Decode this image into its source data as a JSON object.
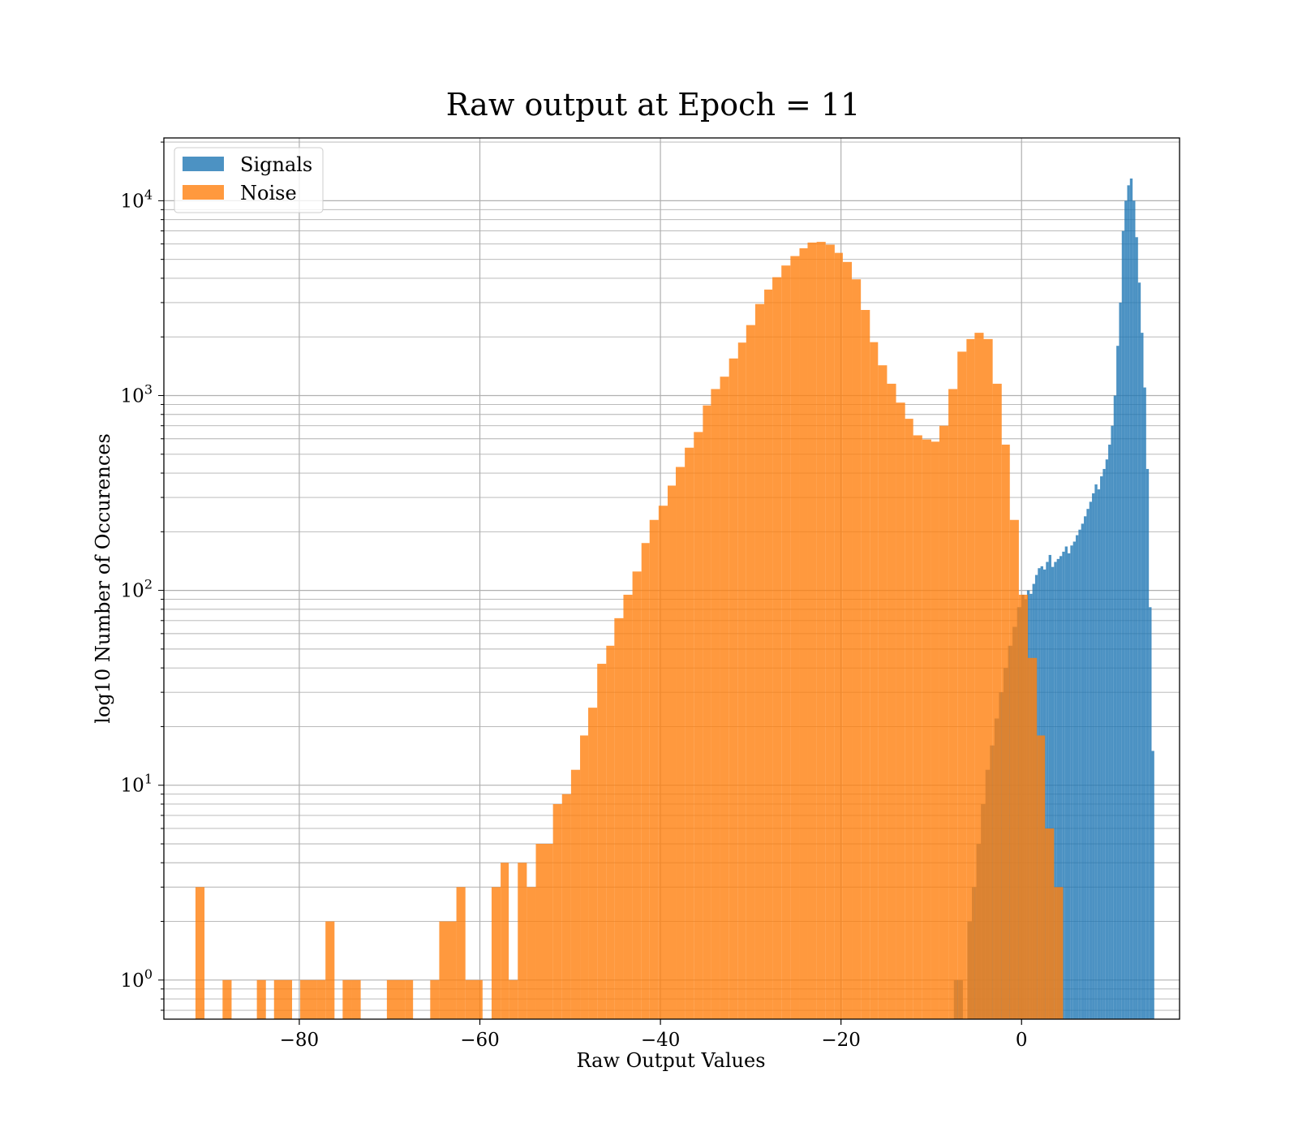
{
  "chart_data": {
    "type": "bar",
    "subtype": "histogram",
    "title": "Raw output at Epoch = 11",
    "xlabel": "Raw Output Values",
    "ylabel": "log10 Number of Occurences",
    "xlim": [
      -95,
      17.5
    ],
    "ylim": [
      0.63,
      21000
    ],
    "yscale": "log",
    "xticks": [
      -80,
      -60,
      -40,
      -20,
      0
    ],
    "xtick_labels": [
      "−80",
      "−60",
      "−40",
      "−20",
      "0"
    ],
    "yticks": [
      1,
      10,
      100,
      1000,
      10000
    ],
    "ytick_labels": [
      {
        "base": "10",
        "exp": "0"
      },
      {
        "base": "10",
        "exp": "1"
      },
      {
        "base": "10",
        "exp": "2"
      },
      {
        "base": "10",
        "exp": "3"
      },
      {
        "base": "10",
        "exp": "4"
      }
    ],
    "grid": true,
    "legend_position": "upper left",
    "series": [
      {
        "name": "Signals",
        "color": "#1f77b4",
        "opacity": 0.8,
        "bins": [
          [
            -7.5,
            -7.0,
            1
          ],
          [
            -7.0,
            -6.5,
            1
          ],
          [
            -6.0,
            -5.5,
            2
          ],
          [
            -5.5,
            -5.0,
            3
          ],
          [
            -5.0,
            -4.5,
            5
          ],
          [
            -4.5,
            -4.0,
            8
          ],
          [
            -4.0,
            -3.5,
            12
          ],
          [
            -3.5,
            -3.0,
            16
          ],
          [
            -3.0,
            -2.5,
            22
          ],
          [
            -2.5,
            -2.0,
            30
          ],
          [
            -2.0,
            -1.5,
            40
          ],
          [
            -1.5,
            -1.0,
            52
          ],
          [
            -1.0,
            -0.5,
            65
          ],
          [
            -0.5,
            0.0,
            82
          ],
          [
            0.0,
            0.3,
            95
          ],
          [
            0.3,
            0.6,
            90
          ],
          [
            0.6,
            0.9,
            100
          ],
          [
            0.9,
            1.2,
            96
          ],
          [
            1.2,
            1.5,
            108
          ],
          [
            1.5,
            1.8,
            120
          ],
          [
            1.8,
            2.1,
            130
          ],
          [
            2.1,
            2.4,
            133
          ],
          [
            2.4,
            2.7,
            128
          ],
          [
            2.7,
            3.0,
            140
          ],
          [
            3.0,
            3.3,
            152
          ],
          [
            3.3,
            3.6,
            132
          ],
          [
            3.6,
            3.9,
            140
          ],
          [
            3.9,
            4.2,
            145
          ],
          [
            4.2,
            4.5,
            150
          ],
          [
            4.5,
            4.8,
            158
          ],
          [
            4.8,
            5.1,
            168
          ],
          [
            5.1,
            5.4,
            155
          ],
          [
            5.4,
            5.7,
            170
          ],
          [
            5.7,
            6.0,
            178
          ],
          [
            6.0,
            6.3,
            192
          ],
          [
            6.3,
            6.6,
            205
          ],
          [
            6.6,
            6.9,
            220
          ],
          [
            6.9,
            7.2,
            240
          ],
          [
            7.2,
            7.5,
            262
          ],
          [
            7.5,
            7.8,
            285
          ],
          [
            7.8,
            8.1,
            315
          ],
          [
            8.1,
            8.4,
            350
          ],
          [
            8.4,
            8.7,
            330
          ],
          [
            8.7,
            9.0,
            385
          ],
          [
            9.0,
            9.3,
            420
          ],
          [
            9.3,
            9.6,
            470
          ],
          [
            9.6,
            9.9,
            560
          ],
          [
            9.9,
            10.2,
            700
          ],
          [
            10.2,
            10.5,
            1000
          ],
          [
            10.5,
            10.8,
            1800
          ],
          [
            10.8,
            11.1,
            3000
          ],
          [
            11.1,
            11.4,
            7000
          ],
          [
            11.4,
            11.7,
            10000
          ],
          [
            11.7,
            12.0,
            12000
          ],
          [
            12.0,
            12.3,
            13000
          ],
          [
            12.3,
            12.6,
            10000
          ],
          [
            12.6,
            12.9,
            6500
          ],
          [
            12.9,
            13.2,
            3800
          ],
          [
            13.2,
            13.5,
            2100
          ],
          [
            13.5,
            13.8,
            1100
          ],
          [
            13.8,
            14.1,
            420
          ],
          [
            14.1,
            14.4,
            82
          ],
          [
            14.4,
            14.7,
            15
          ],
          [
            14.7,
            15.0,
            0
          ]
        ]
      },
      {
        "name": "Noise",
        "color": "#ff7f0e",
        "opacity": 0.8,
        "bins": [
          [
            -91.5,
            -90.5,
            3
          ],
          [
            -88.5,
            -87.5,
            1
          ],
          [
            -84.7,
            -83.7,
            1
          ],
          [
            -82.8,
            -80.8,
            1
          ],
          [
            -79.9,
            -78.1,
            1
          ],
          [
            -78.1,
            -77.1,
            1
          ],
          [
            -77.1,
            -76.1,
            2
          ],
          [
            -75.2,
            -74.2,
            1
          ],
          [
            -74.2,
            -73.2,
            1
          ],
          [
            -70.3,
            -68.3,
            1
          ],
          [
            -68.3,
            -67.4,
            1
          ],
          [
            -65.5,
            -64.5,
            1
          ],
          [
            -64.5,
            -62.6,
            2
          ],
          [
            -62.6,
            -61.6,
            3
          ],
          [
            -61.6,
            -59.7,
            1
          ],
          [
            -58.7,
            -57.7,
            3
          ],
          [
            -57.7,
            -56.8,
            4
          ],
          [
            -56.8,
            -55.8,
            1
          ],
          [
            -55.8,
            -54.8,
            4
          ],
          [
            -54.8,
            -53.8,
            3
          ],
          [
            -53.8,
            -51.9,
            5
          ],
          [
            -51.9,
            -50.9,
            8
          ],
          [
            -50.9,
            -49.9,
            9
          ],
          [
            -49.9,
            -48.9,
            12
          ],
          [
            -48.9,
            -48.0,
            18
          ],
          [
            -48.0,
            -47.0,
            25
          ],
          [
            -47.0,
            -46.0,
            42
          ],
          [
            -46.0,
            -45.1,
            52
          ],
          [
            -45.1,
            -44.1,
            72
          ],
          [
            -44.1,
            -43.1,
            95
          ],
          [
            -43.1,
            -42.1,
            125
          ],
          [
            -42.1,
            -41.2,
            175
          ],
          [
            -41.2,
            -40.2,
            230
          ],
          [
            -40.2,
            -39.2,
            272
          ],
          [
            -39.2,
            -38.3,
            345
          ],
          [
            -38.3,
            -37.3,
            430
          ],
          [
            -37.3,
            -36.3,
            540
          ],
          [
            -36.3,
            -35.3,
            650
          ],
          [
            -35.3,
            -34.4,
            890
          ],
          [
            -34.4,
            -33.4,
            1080
          ],
          [
            -33.4,
            -32.4,
            1250
          ],
          [
            -32.4,
            -31.4,
            1550
          ],
          [
            -31.4,
            -30.5,
            1870
          ],
          [
            -30.5,
            -29.5,
            2300
          ],
          [
            -29.5,
            -28.5,
            2950
          ],
          [
            -28.5,
            -27.6,
            3500
          ],
          [
            -27.6,
            -26.6,
            4050
          ],
          [
            -26.6,
            -25.6,
            4650
          ],
          [
            -25.6,
            -24.6,
            5200
          ],
          [
            -24.6,
            -23.7,
            5700
          ],
          [
            -23.7,
            -22.7,
            6100
          ],
          [
            -22.7,
            -21.7,
            6150
          ],
          [
            -21.7,
            -20.7,
            5950
          ],
          [
            -20.7,
            -19.8,
            5400
          ],
          [
            -19.8,
            -18.8,
            4850
          ],
          [
            -18.8,
            -17.8,
            3950
          ],
          [
            -17.8,
            -16.8,
            2750
          ],
          [
            -16.8,
            -15.9,
            1880
          ],
          [
            -15.9,
            -14.9,
            1430
          ],
          [
            -14.9,
            -13.9,
            1150
          ],
          [
            -13.9,
            -12.9,
            920
          ],
          [
            -12.9,
            -12.0,
            760
          ],
          [
            -12.0,
            -11.0,
            625
          ],
          [
            -11.0,
            -10.0,
            595
          ],
          [
            -10.0,
            -9.1,
            580
          ],
          [
            -9.1,
            -8.1,
            700
          ],
          [
            -8.1,
            -7.1,
            1080
          ],
          [
            -7.1,
            -6.1,
            1680
          ],
          [
            -6.1,
            -5.2,
            1950
          ],
          [
            -5.2,
            -4.2,
            2100
          ],
          [
            -4.2,
            -3.2,
            1950
          ],
          [
            -3.2,
            -2.2,
            1150
          ],
          [
            -2.2,
            -1.3,
            560
          ],
          [
            -1.3,
            -0.3,
            230
          ],
          [
            -0.3,
            0.7,
            95
          ],
          [
            0.7,
            1.7,
            45
          ],
          [
            1.7,
            2.6,
            18
          ],
          [
            2.6,
            3.6,
            6
          ],
          [
            3.6,
            4.6,
            3
          ]
        ]
      }
    ]
  }
}
